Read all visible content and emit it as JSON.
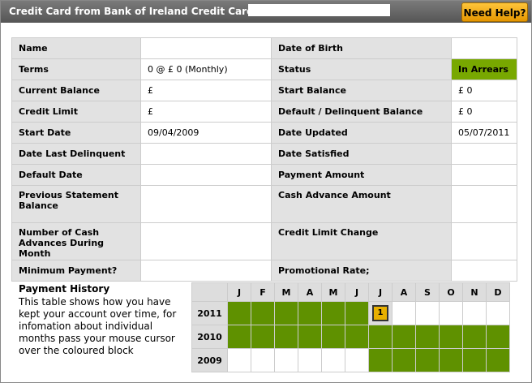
{
  "header": {
    "title": "Credit Card from Bank of Ireland Credit Cards",
    "help_button": "Need Help?"
  },
  "details": {
    "rows": [
      [
        "Name",
        null,
        "Date of Birth",
        null
      ],
      [
        "Terms",
        "0  @  £ 0 (Monthly)",
        "Status",
        "In Arrears"
      ],
      [
        "Current Balance",
        "£",
        "Start Balance",
        "£ 0"
      ],
      [
        "Credit Limit",
        "£",
        "Default / Delinquent Balance",
        "£ 0"
      ],
      [
        "Start Date",
        "09/04/2009",
        "Date Updated",
        "05/07/2011"
      ],
      [
        "Date Last Delinquent",
        null,
        "Date Satisfied",
        null
      ],
      [
        "Default Date",
        null,
        "Payment Amount",
        null
      ],
      [
        "Previous Statement Balance",
        null,
        "Cash Advance Amount",
        null
      ],
      [
        "Number of Cash Advances During Month",
        null,
        "Credit Limit Change",
        null
      ],
      [
        "Minimum Payment?",
        null,
        "Promotional Rate;",
        null
      ]
    ]
  },
  "payment_history": {
    "title": "Payment History",
    "description": "This table shows how you have kept your account over time, for infomation about individual months pass your mouse cursor over the coloured block",
    "months": [
      "J",
      "F",
      "M",
      "A",
      "M",
      "J",
      "J",
      "A",
      "S",
      "O",
      "N",
      "D"
    ],
    "years": [
      {
        "year": "2011",
        "cells": [
          "#5f9100",
          "#5f9100",
          "#5f9100",
          "#5f9100",
          "#5f9100",
          "#5f9100",
          1,
          null,
          null,
          null,
          null,
          null
        ]
      },
      {
        "year": "2010",
        "cells": [
          "#5f9100",
          "#5f9100",
          "#5f9100",
          "#5f9100",
          "#5f9100",
          "#5f9100",
          "#5f9100",
          "#5f9100",
          "#5f9100",
          "#5f9100",
          "#5f9100",
          "#5f9100"
        ]
      },
      {
        "year": "2009",
        "cells": [
          null,
          null,
          null,
          null,
          null,
          null,
          "#5f9100",
          "#5f9100",
          "#5f9100",
          "#5f9100",
          "#5f9100",
          "#5f9100"
        ]
      }
    ]
  }
}
